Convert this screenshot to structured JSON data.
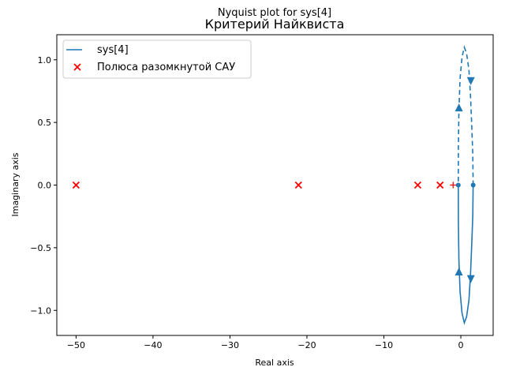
{
  "chart_data": {
    "type": "line",
    "suptitle": "Nyquist plot for sys[4]",
    "title": "Критерий Найквиста",
    "xlabel": "Real axis",
    "ylabel": "Imaginary axis",
    "xlim": [
      -52.5,
      4.2
    ],
    "ylim": [
      -1.2,
      1.2
    ],
    "xticks": [
      -50,
      -40,
      -30,
      -20,
      -10,
      0
    ],
    "xtick_labels": [
      "−50",
      "−40",
      "−30",
      "−20",
      "−10",
      "0"
    ],
    "yticks": [
      -1.0,
      -0.5,
      0.0,
      0.5,
      1.0
    ],
    "ytick_labels": [
      "−1.0",
      "−0.5",
      "0.0",
      "0.5",
      "1.0"
    ],
    "grid": false,
    "legend_position": "top-left",
    "series": [
      {
        "name": "sys[4]",
        "type": "line",
        "color": "#1f77b4",
        "points": [
          [
            1.6,
            0.0
          ],
          [
            1.55,
            -0.25
          ],
          [
            1.4,
            -0.5
          ],
          [
            1.25,
            -0.72
          ],
          [
            1.05,
            -0.92
          ],
          [
            0.75,
            -1.05
          ],
          [
            0.45,
            -1.1
          ],
          [
            0.15,
            -1.02
          ],
          [
            -0.1,
            -0.85
          ],
          [
            -0.25,
            -0.6
          ],
          [
            -0.32,
            -0.3
          ],
          [
            -0.33,
            0.0
          ]
        ],
        "mirror_points_dashed": true,
        "arrows": [
          {
            "x": -0.25,
            "y": -0.69,
            "dir": "up"
          },
          {
            "x": 1.3,
            "y": -0.75,
            "dir": "down"
          },
          {
            "x": -0.25,
            "y": 0.62,
            "dir": "up"
          },
          {
            "x": 1.3,
            "y": 0.83,
            "dir": "down"
          }
        ],
        "endpoint_markers": [
          [
            1.6,
            0.0
          ],
          [
            -0.33,
            0.0
          ]
        ]
      },
      {
        "name": "Полюса разомкнутой САУ",
        "type": "scatter",
        "marker": "x",
        "color": "#ff0000",
        "points": [
          [
            -50.0,
            0.0
          ],
          [
            -21.1,
            0.0
          ],
          [
            -5.6,
            0.0
          ],
          [
            -2.7,
            0.0
          ]
        ]
      }
    ],
    "critical_point": {
      "marker": "+",
      "color": "#ff0000",
      "x": -1.0,
      "y": 0.0
    }
  }
}
